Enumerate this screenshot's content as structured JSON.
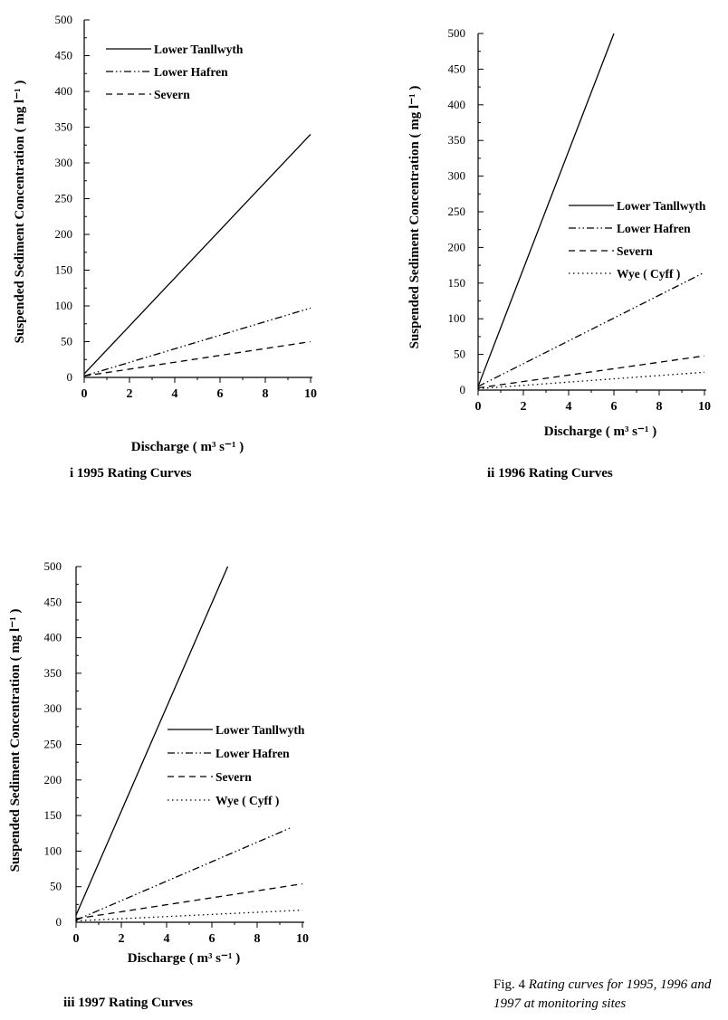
{
  "charts": [
    {
      "id": "p1",
      "subtitle": "i  1995 Rating Curves",
      "xlabel": "Discharge ( m³ s⁻¹ )",
      "ylabel": "Suspended Sediment Concentration ( mg l⁻¹ )",
      "y_ticks": [
        "0",
        "50",
        "100",
        "150",
        "200",
        "250",
        "300",
        "350",
        "400",
        "450",
        "500"
      ],
      "x_ticks": [
        "0",
        "2",
        "4",
        "6",
        "8",
        "10"
      ],
      "legend": [
        "Lower Tanllwyth",
        "Lower Hafren",
        "Severn"
      ]
    },
    {
      "id": "p2",
      "subtitle": "ii  1996 Rating Curves",
      "xlabel": "Discharge ( m³ s⁻¹ )",
      "ylabel": "Suspended Sediment Concentration ( mg l⁻¹ )",
      "y_ticks": [
        "0",
        "50",
        "100",
        "150",
        "200",
        "250",
        "300",
        "350",
        "400",
        "450",
        "500"
      ],
      "x_ticks": [
        "0",
        "2",
        "4",
        "6",
        "8",
        "10"
      ],
      "legend": [
        "Lower Tanllwyth",
        "Lower Hafren",
        "Severn",
        "Wye ( Cyff )"
      ]
    },
    {
      "id": "p3",
      "subtitle": "iii  1997 Rating Curves",
      "xlabel": "Discharge ( m³ s⁻¹ )",
      "ylabel": "Suspended Sediment Concentration ( mg l⁻¹ )",
      "y_ticks": [
        "0",
        "50",
        "100",
        "150",
        "200",
        "250",
        "300",
        "350",
        "400",
        "450",
        "500"
      ],
      "x_ticks": [
        "0",
        "2",
        "4",
        "6",
        "8",
        "10"
      ],
      "legend": [
        "Lower Tanllwyth",
        "Lower Hafren",
        "Severn",
        "Wye ( Cyff )"
      ]
    }
  ],
  "figure_caption": {
    "lead": "Fig. 4 ",
    "rest": "Rating curves for 1995, 1996 and 1997 at monitoring sites"
  },
  "chart_data": [
    {
      "type": "line",
      "title": "i  1995 Rating Curves",
      "xlabel": "Discharge ( m³ s⁻¹ )",
      "ylabel": "Suspended Sediment Concentration ( mg l⁻¹ )",
      "xlim": [
        0,
        10
      ],
      "ylim": [
        0,
        500
      ],
      "legend_position": "top-center",
      "grid": false,
      "series": [
        {
          "name": "Lower Tanllwyth",
          "style": "solid",
          "x": [
            0,
            10
          ],
          "y": [
            5,
            340
          ]
        },
        {
          "name": "Lower Hafren",
          "style": "dash-dot-dot",
          "x": [
            0,
            10
          ],
          "y": [
            2,
            97
          ]
        },
        {
          "name": "Severn",
          "style": "dashed",
          "x": [
            0,
            10
          ],
          "y": [
            2,
            50
          ]
        }
      ]
    },
    {
      "type": "line",
      "title": "ii  1996 Rating Curves",
      "xlabel": "Discharge ( m³ s⁻¹ )",
      "ylabel": "Suspended Sediment Concentration ( mg l⁻¹ )",
      "xlim": [
        0,
        10
      ],
      "ylim": [
        0,
        500
      ],
      "legend_position": "right",
      "grid": false,
      "series": [
        {
          "name": "Lower Tanllwyth",
          "style": "solid",
          "x": [
            0,
            6.0
          ],
          "y": [
            5,
            500
          ]
        },
        {
          "name": "Lower Hafren",
          "style": "dash-dot-dot",
          "x": [
            0,
            10
          ],
          "y": [
            5,
            165
          ]
        },
        {
          "name": "Severn",
          "style": "dashed",
          "x": [
            0,
            10
          ],
          "y": [
            3,
            48
          ]
        },
        {
          "name": "Wye ( Cyff )",
          "style": "dotted",
          "x": [
            0,
            10
          ],
          "y": [
            2,
            25
          ]
        }
      ]
    },
    {
      "type": "line",
      "title": "iii  1997 Rating Curves",
      "xlabel": "Discharge ( m³ s⁻¹ )",
      "ylabel": "Suspended Sediment Concentration ( mg l⁻¹ )",
      "xlim": [
        0,
        10
      ],
      "ylim": [
        0,
        500
      ],
      "legend_position": "right",
      "grid": false,
      "series": [
        {
          "name": "Lower Tanllwyth",
          "style": "solid",
          "x": [
            0,
            6.7
          ],
          "y": [
            10,
            500
          ]
        },
        {
          "name": "Lower Hafren",
          "style": "dash-dot-dot",
          "x": [
            0,
            9.5
          ],
          "y": [
            3,
            133
          ]
        },
        {
          "name": "Severn",
          "style": "dashed",
          "x": [
            0,
            10
          ],
          "y": [
            5,
            54
          ]
        },
        {
          "name": "Wye ( Cyff )",
          "style": "dotted",
          "x": [
            0,
            10
          ],
          "y": [
            2,
            17
          ]
        }
      ]
    }
  ]
}
